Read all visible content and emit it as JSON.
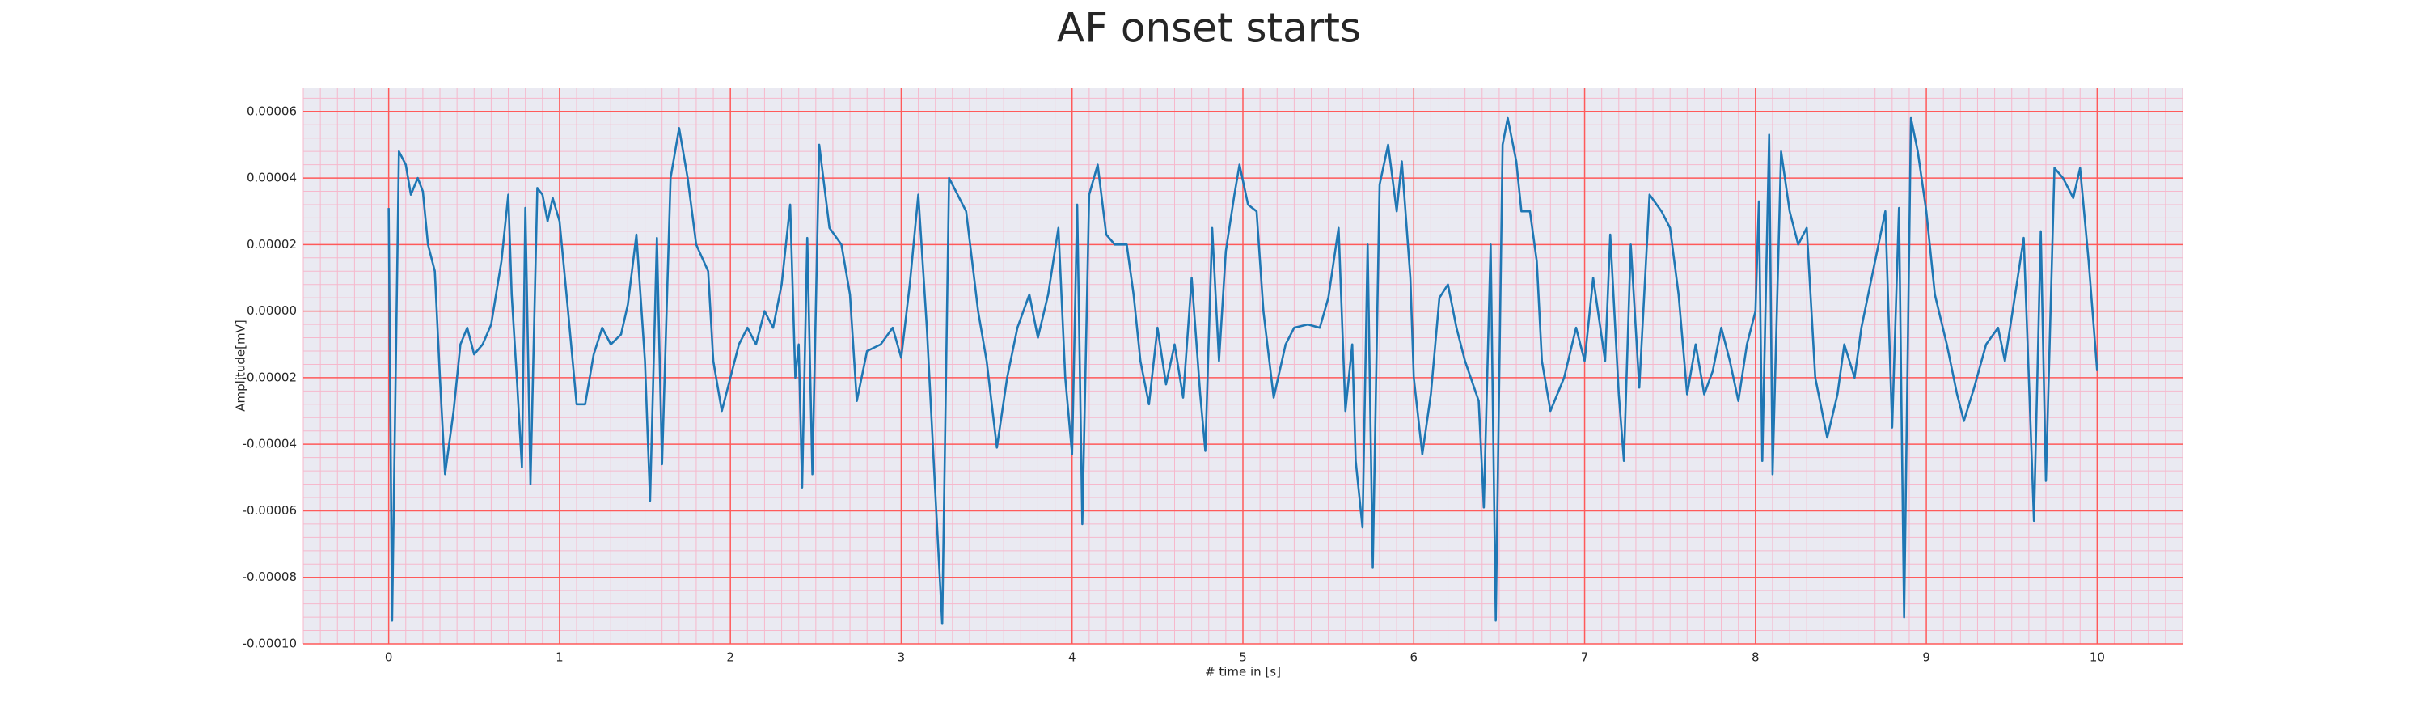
{
  "chart_data": {
    "type": "line",
    "title": "AF onset starts",
    "xlabel": "# time in [s]",
    "ylabel": "Amplitude[mV]",
    "xlim": [
      -0.5,
      10.5
    ],
    "ylim": [
      -0.0001,
      6.7e-05
    ],
    "xticks": [
      0,
      1,
      2,
      3,
      4,
      5,
      6,
      7,
      8,
      9,
      10
    ],
    "yticks": [
      {
        "value": -0.0001,
        "label": "-0.00010"
      },
      {
        "value": -8e-05,
        "label": "-0.00008"
      },
      {
        "value": -6e-05,
        "label": "-0.00006"
      },
      {
        "value": -4e-05,
        "label": "-0.00004"
      },
      {
        "value": -2e-05,
        "label": "-0.00002"
      },
      {
        "value": 0,
        "label": "0.00000"
      },
      {
        "value": 2e-05,
        "label": "0.00002"
      },
      {
        "value": 4e-05,
        "label": "0.00004"
      },
      {
        "value": 6e-05,
        "label": "0.00006"
      }
    ],
    "grid": true,
    "minor_grid": true,
    "grid_color": "#ff5a5a",
    "minor_grid_color": "#f6b8cc",
    "background": "#eaeaf2",
    "x": [
      0,
      0.02,
      0.06,
      0.1,
      0.13,
      0.17,
      0.2,
      0.23,
      0.27,
      0.3,
      0.33,
      0.38,
      0.42,
      0.46,
      0.5,
      0.55,
      0.6,
      0.66,
      0.7,
      0.72,
      0.75,
      0.78,
      0.8,
      0.83,
      0.87,
      0.9,
      0.93,
      0.96,
      1.0,
      1.05,
      1.1,
      1.15,
      1.2,
      1.25,
      1.3,
      1.36,
      1.4,
      1.45,
      1.5,
      1.53,
      1.57,
      1.6,
      1.65,
      1.7,
      1.75,
      1.8,
      1.87,
      1.9,
      1.95,
      2.0,
      2.05,
      2.1,
      2.15,
      2.2,
      2.25,
      2.3,
      2.35,
      2.38,
      2.4,
      2.42,
      2.45,
      2.48,
      2.52,
      2.58,
      2.65,
      2.7,
      2.74,
      2.8,
      2.88,
      2.95,
      3.0,
      3.05,
      3.1,
      3.15,
      3.2,
      3.24,
      3.28,
      3.32,
      3.38,
      3.45,
      3.5,
      3.56,
      3.62,
      3.68,
      3.75,
      3.8,
      3.86,
      3.92,
      3.96,
      4.0,
      4.03,
      4.06,
      4.1,
      4.15,
      4.2,
      4.25,
      4.32,
      4.36,
      4.4,
      4.45,
      4.5,
      4.55,
      4.6,
      4.65,
      4.7,
      4.75,
      4.78,
      4.82,
      4.86,
      4.9,
      4.95,
      4.98,
      5.03,
      5.08,
      5.12,
      5.18,
      5.25,
      5.3,
      5.38,
      5.45,
      5.5,
      5.56,
      5.6,
      5.64,
      5.66,
      5.7,
      5.73,
      5.76,
      5.8,
      5.85,
      5.9,
      5.93,
      5.98,
      6.0,
      6.05,
      6.1,
      6.15,
      6.2,
      6.25,
      6.3,
      6.38,
      6.41,
      6.45,
      6.48,
      6.52,
      6.55,
      6.6,
      6.63,
      6.68,
      6.72,
      6.75,
      6.8,
      6.88,
      6.95,
      7.0,
      7.05,
      7.12,
      7.15,
      7.2,
      7.23,
      7.27,
      7.32,
      7.38,
      7.45,
      7.5,
      7.55,
      7.6,
      7.65,
      7.7,
      7.75,
      7.8,
      7.85,
      7.9,
      7.95,
      8.0,
      8.02,
      8.04,
      8.08,
      8.1,
      8.15,
      8.2,
      8.25,
      8.3,
      8.35,
      8.42,
      8.48,
      8.52,
      8.58,
      8.62,
      8.7,
      8.76,
      8.8,
      8.84,
      8.87,
      8.91,
      8.95,
      9.0,
      9.05,
      9.12,
      9.18,
      9.22,
      9.28,
      9.35,
      9.42,
      9.46,
      9.52,
      9.57,
      9.6,
      9.63,
      9.67,
      9.7,
      9.75,
      9.8,
      9.86,
      9.9,
      9.95,
      10.0
    ],
    "series": [
      {
        "color": "#1f77b4",
        "values": [
          3.1e-05,
          -9.3e-05,
          4.8e-05,
          4.4e-05,
          3.5e-05,
          4e-05,
          3.6e-05,
          2e-05,
          1.2e-05,
          -2e-05,
          -4.9e-05,
          -3e-05,
          -1e-05,
          -5e-06,
          -1.3e-05,
          -1e-05,
          -4e-06,
          1.5e-05,
          3.5e-05,
          5e-06,
          -2e-05,
          -4.7e-05,
          3.1e-05,
          -5.2e-05,
          3.7e-05,
          3.5e-05,
          2.7e-05,
          3.4e-05,
          2.7e-05,
          0,
          -2.8e-05,
          -2.8e-05,
          -1.3e-05,
          -5e-06,
          -1e-05,
          -7e-06,
          2e-06,
          2.3e-05,
          -1.5e-05,
          -5.7e-05,
          2.2e-05,
          -4.6e-05,
          4e-05,
          5.5e-05,
          4e-05,
          2e-05,
          1.2e-05,
          -1.5e-05,
          -3e-05,
          -2e-05,
          -1e-05,
          -5e-06,
          -1e-05,
          0,
          -5e-06,
          8e-06,
          3.2e-05,
          -2e-05,
          -1e-05,
          -5.3e-05,
          2.2e-05,
          -4.9e-05,
          5e-05,
          2.5e-05,
          2e-05,
          5e-06,
          -2.7e-05,
          -1.2e-05,
          -1e-05,
          -5e-06,
          -1.4e-05,
          8e-06,
          3.5e-05,
          -5e-06,
          -5.5e-05,
          -9.4e-05,
          4e-05,
          3.6e-05,
          3e-05,
          0,
          -1.5e-05,
          -4.1e-05,
          -2e-05,
          -5e-06,
          5e-06,
          -8e-06,
          5e-06,
          2.5e-05,
          -2e-05,
          -4.3e-05,
          3.2e-05,
          -6.4e-05,
          3.5e-05,
          4.4e-05,
          2.3e-05,
          2e-05,
          2e-05,
          5e-06,
          -1.5e-05,
          -2.8e-05,
          -5e-06,
          -2.2e-05,
          -1e-05,
          -2.6e-05,
          1e-05,
          -2.5e-05,
          -4.2e-05,
          2.5e-05,
          -1.5e-05,
          1.8e-05,
          3.5e-05,
          4.4e-05,
          3.2e-05,
          3e-05,
          0,
          -2.6e-05,
          -1e-05,
          -5e-06,
          -4e-06,
          -5e-06,
          4e-06,
          2.5e-05,
          -3e-05,
          -1e-05,
          -4.5e-05,
          -6.5e-05,
          2e-05,
          -7.7e-05,
          3.8e-05,
          5e-05,
          3e-05,
          4.5e-05,
          1e-05,
          -2e-05,
          -4.3e-05,
          -2.5e-05,
          4e-06,
          8e-06,
          -5e-06,
          -1.5e-05,
          -2.7e-05,
          -5.9e-05,
          2e-05,
          -9.3e-05,
          5e-05,
          5.8e-05,
          4.5e-05,
          3e-05,
          3e-05,
          1.5e-05,
          -1.5e-05,
          -3e-05,
          -2e-05,
          -5e-06,
          -1.5e-05,
          1e-05,
          -1.5e-05,
          2.3e-05,
          -2.5e-05,
          -4.5e-05,
          2e-05,
          -2.3e-05,
          3.5e-05,
          3e-05,
          2.5e-05,
          5e-06,
          -2.5e-05,
          -1e-05,
          -2.5e-05,
          -1.8e-05,
          -5e-06,
          -1.5e-05,
          -2.7e-05,
          -1e-05,
          0,
          3.3e-05,
          -4.5e-05,
          5.3e-05,
          -4.9e-05,
          4.8e-05,
          3e-05,
          2e-05,
          2.5e-05,
          -2e-05,
          -3.8e-05,
          -2.5e-05,
          -1e-05,
          -2e-05,
          -5e-06,
          1.5e-05,
          3e-05,
          -3.5e-05,
          3.1e-05,
          -9.2e-05,
          5.8e-05,
          4.8e-05,
          3e-05,
          5e-06,
          -1e-05,
          -2.5e-05,
          -3.3e-05,
          -2.3e-05,
          -1e-05,
          -5e-06,
          -1.5e-05,
          5e-06,
          2.2e-05,
          -2e-05,
          -6.3e-05,
          2.4e-05,
          -5.1e-05,
          4.3e-05,
          4e-05,
          3.4e-05,
          4.3e-05,
          1.5e-05,
          -1.8e-05
        ]
      }
    ]
  }
}
